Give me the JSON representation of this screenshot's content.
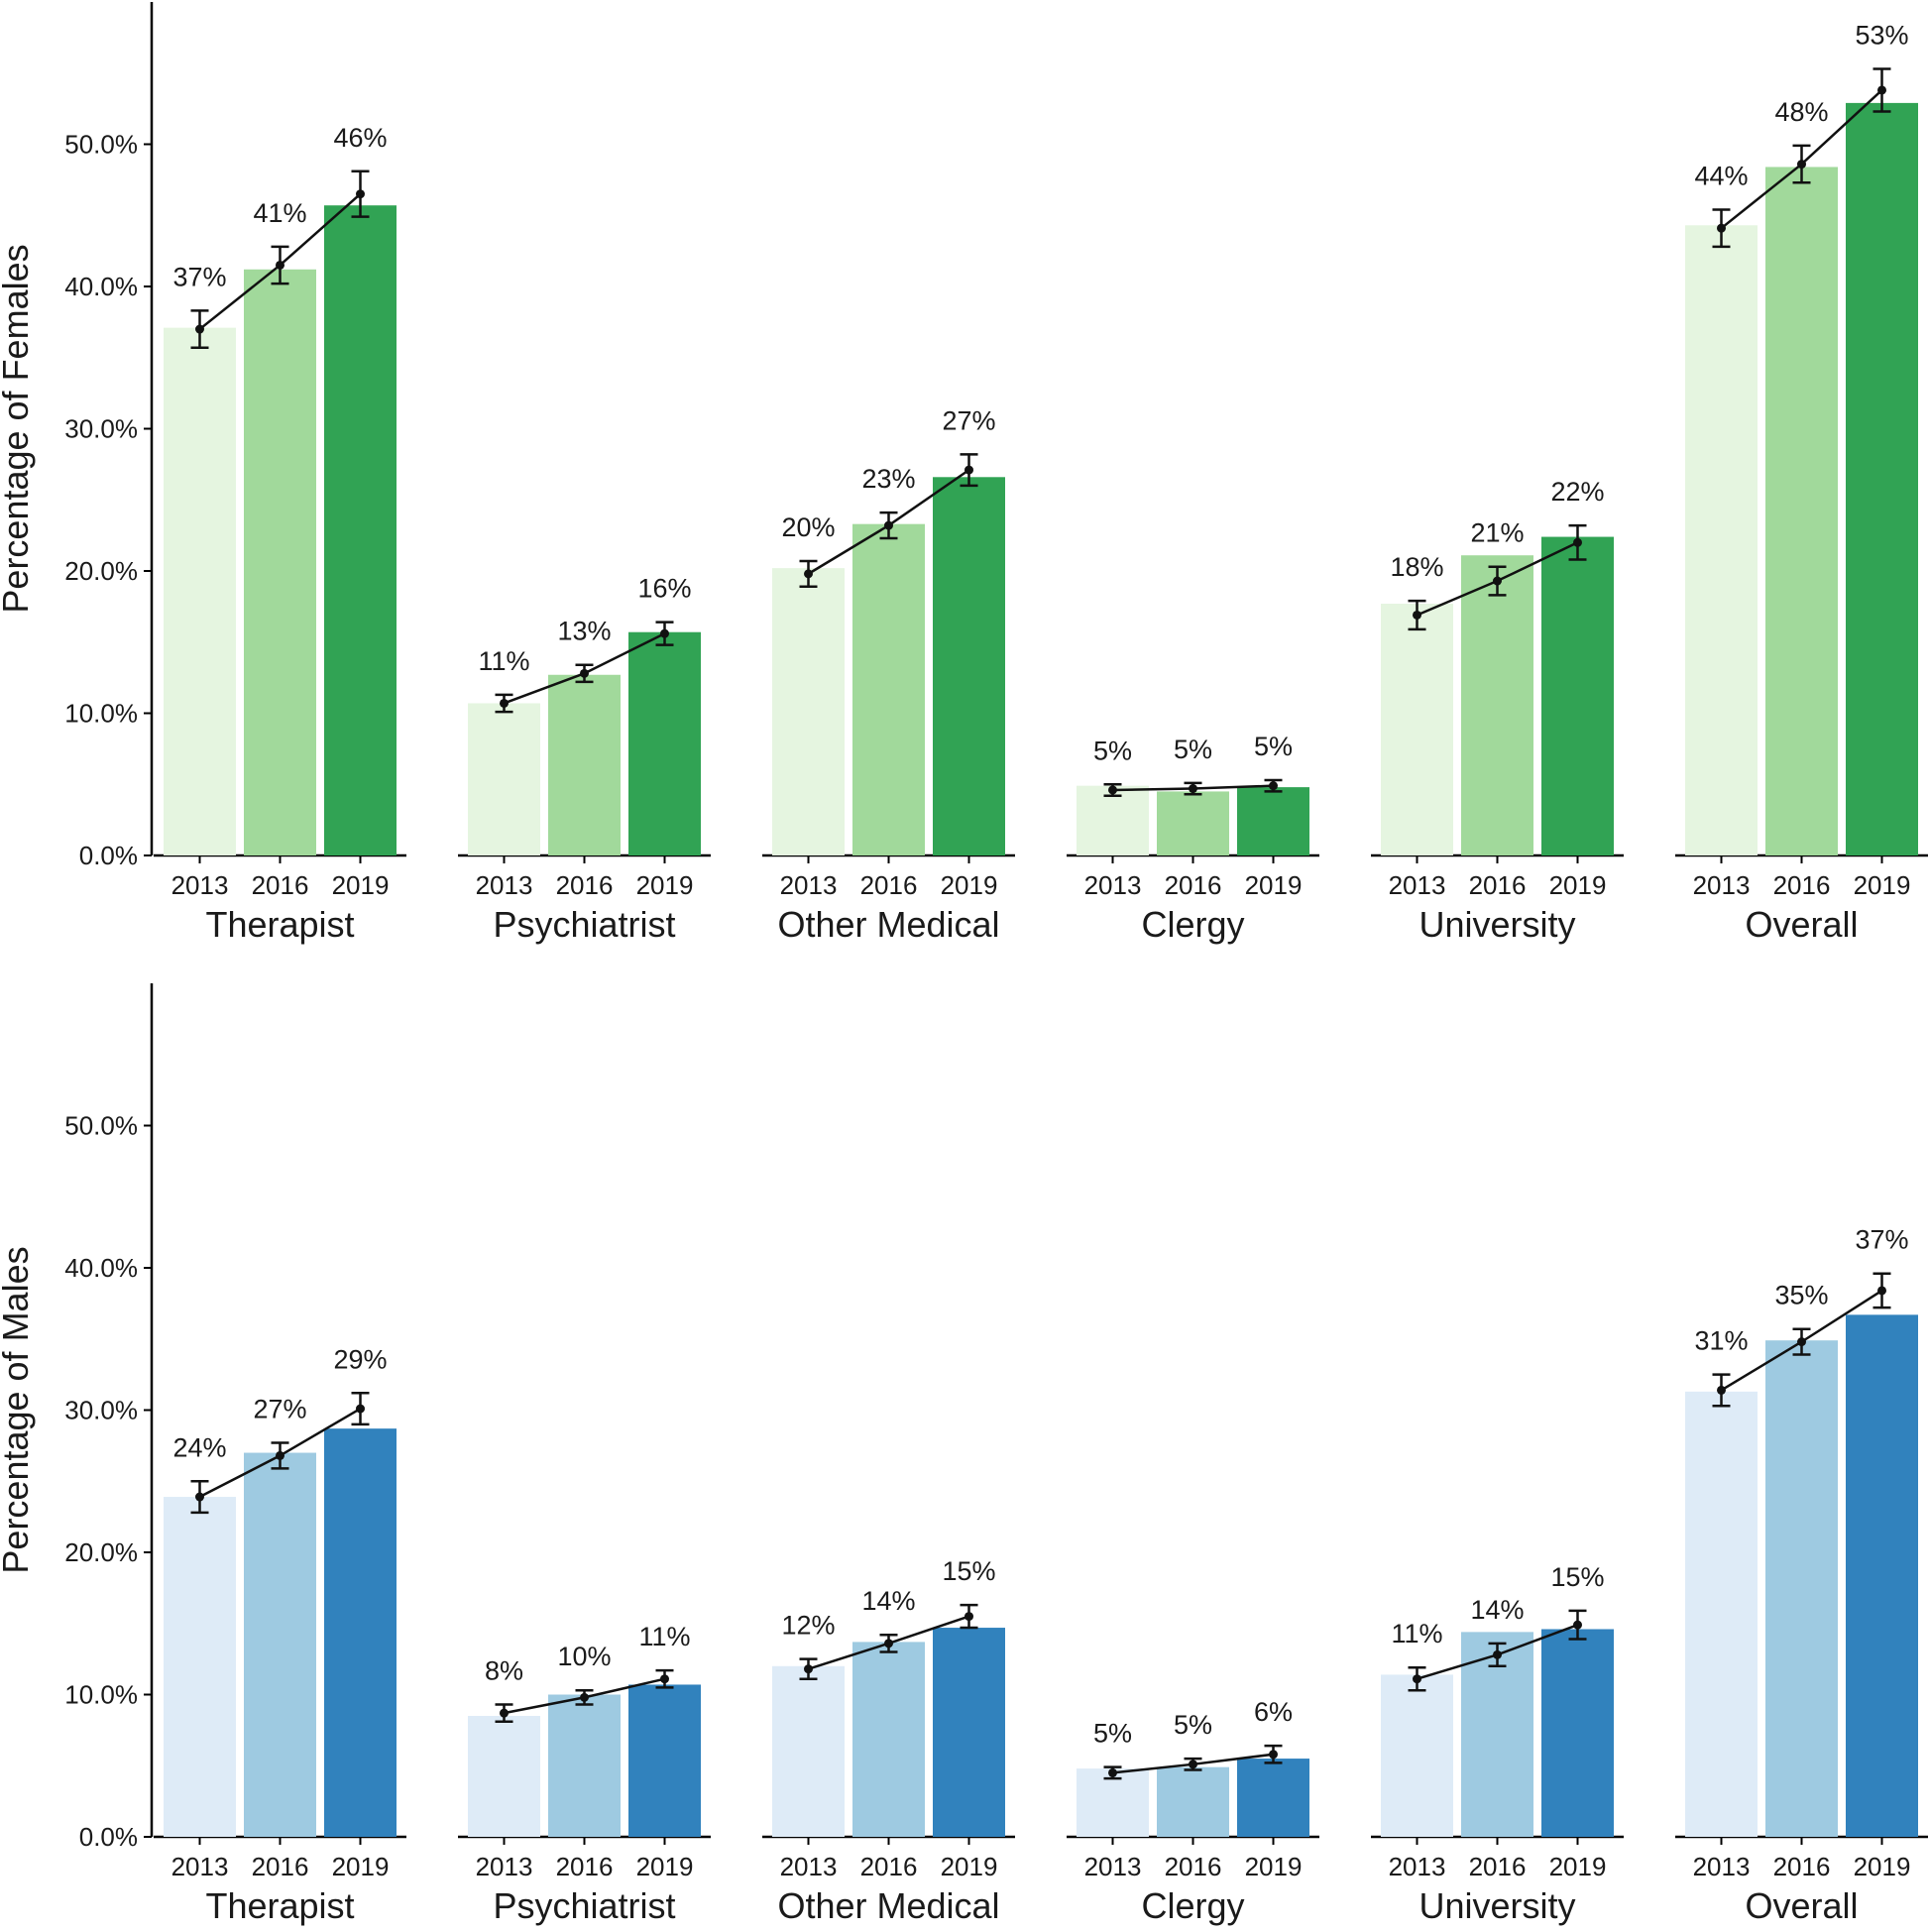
{
  "chart_data": [
    {
      "type": "bar",
      "panel": "top",
      "ylabel": "Percentage of Females",
      "ylim": [
        0,
        60
      ],
      "yticks": [
        0,
        10,
        20,
        30,
        40,
        50
      ],
      "ytick_labels": [
        "0.0%",
        "10.0%",
        "20.0%",
        "30.0%",
        "40.0%",
        "50.0%"
      ],
      "years": [
        "2013",
        "2016",
        "2019"
      ],
      "colors": [
        "#e5f5e0",
        "#a1d99b",
        "#31a354"
      ],
      "groups": [
        {
          "name": "Therapist",
          "values": [
            37.1,
            41.2,
            45.7
          ],
          "points": [
            37.0,
            41.5,
            46.5
          ],
          "err": [
            1.3,
            1.3,
            1.6
          ],
          "labels": [
            "37%",
            "41%",
            "46%"
          ]
        },
        {
          "name": "Psychiatrist",
          "values": [
            10.7,
            12.7,
            15.7
          ],
          "points": [
            10.7,
            12.8,
            15.6
          ],
          "err": [
            0.6,
            0.6,
            0.8
          ],
          "labels": [
            "11%",
            "13%",
            "16%"
          ]
        },
        {
          "name": "Other Medical",
          "values": [
            20.2,
            23.3,
            26.6
          ],
          "points": [
            19.8,
            23.2,
            27.1
          ],
          "err": [
            0.9,
            0.9,
            1.1
          ],
          "labels": [
            "20%",
            "23%",
            "27%"
          ]
        },
        {
          "name": "Clergy",
          "values": [
            4.9,
            4.5,
            4.8
          ],
          "points": [
            4.6,
            4.7,
            4.9
          ],
          "err": [
            0.4,
            0.4,
            0.4
          ],
          "labels": [
            "5%",
            "5%",
            "5%"
          ]
        },
        {
          "name": "University",
          "values": [
            17.7,
            21.1,
            22.4
          ],
          "points": [
            16.9,
            19.3,
            22.0
          ],
          "err": [
            1.0,
            1.0,
            1.2
          ],
          "labels": [
            "18%",
            "21%",
            "22%"
          ]
        },
        {
          "name": "Overall",
          "values": [
            44.3,
            48.4,
            52.9
          ],
          "points": [
            44.1,
            48.6,
            53.8
          ],
          "err": [
            1.3,
            1.3,
            1.5
          ],
          "labels": [
            "44%",
            "48%",
            "53%"
          ]
        }
      ]
    },
    {
      "type": "bar",
      "panel": "bottom",
      "ylabel": "Percentage of Males",
      "ylim": [
        0,
        60
      ],
      "yticks": [
        0,
        10,
        20,
        30,
        40,
        50
      ],
      "ytick_labels": [
        "0.0%",
        "10.0%",
        "20.0%",
        "30.0%",
        "40.0%",
        "50.0%"
      ],
      "years": [
        "2013",
        "2016",
        "2019"
      ],
      "colors": [
        "#deebf7",
        "#9ecae1",
        "#3182bd"
      ],
      "groups": [
        {
          "name": "Therapist",
          "values": [
            23.9,
            27.0,
            28.7
          ],
          "points": [
            23.9,
            26.8,
            30.1
          ],
          "err": [
            1.1,
            0.9,
            1.1
          ],
          "labels": [
            "24%",
            "27%",
            "29%"
          ]
        },
        {
          "name": "Psychiatrist",
          "values": [
            8.5,
            10.0,
            10.7
          ],
          "points": [
            8.7,
            9.8,
            11.1
          ],
          "err": [
            0.6,
            0.5,
            0.6
          ],
          "labels": [
            "8%",
            "10%",
            "11%"
          ]
        },
        {
          "name": "Other Medical",
          "values": [
            12.0,
            13.7,
            14.7
          ],
          "points": [
            11.8,
            13.6,
            15.5
          ],
          "err": [
            0.7,
            0.6,
            0.8
          ],
          "labels": [
            "12%",
            "14%",
            "15%"
          ]
        },
        {
          "name": "Clergy",
          "values": [
            4.8,
            4.9,
            5.5
          ],
          "points": [
            4.5,
            5.1,
            5.8
          ],
          "err": [
            0.4,
            0.4,
            0.6
          ],
          "labels": [
            "5%",
            "5%",
            "6%"
          ]
        },
        {
          "name": "University",
          "values": [
            11.4,
            14.4,
            14.6
          ],
          "points": [
            11.1,
            12.8,
            14.9
          ],
          "err": [
            0.8,
            0.8,
            1.0
          ],
          "labels": [
            "11%",
            "14%",
            "15%"
          ]
        },
        {
          "name": "Overall",
          "values": [
            31.3,
            34.9,
            36.7
          ],
          "points": [
            31.4,
            34.8,
            38.4
          ],
          "err": [
            1.1,
            0.9,
            1.2
          ],
          "labels": [
            "31%",
            "35%",
            "37%"
          ]
        }
      ]
    }
  ]
}
